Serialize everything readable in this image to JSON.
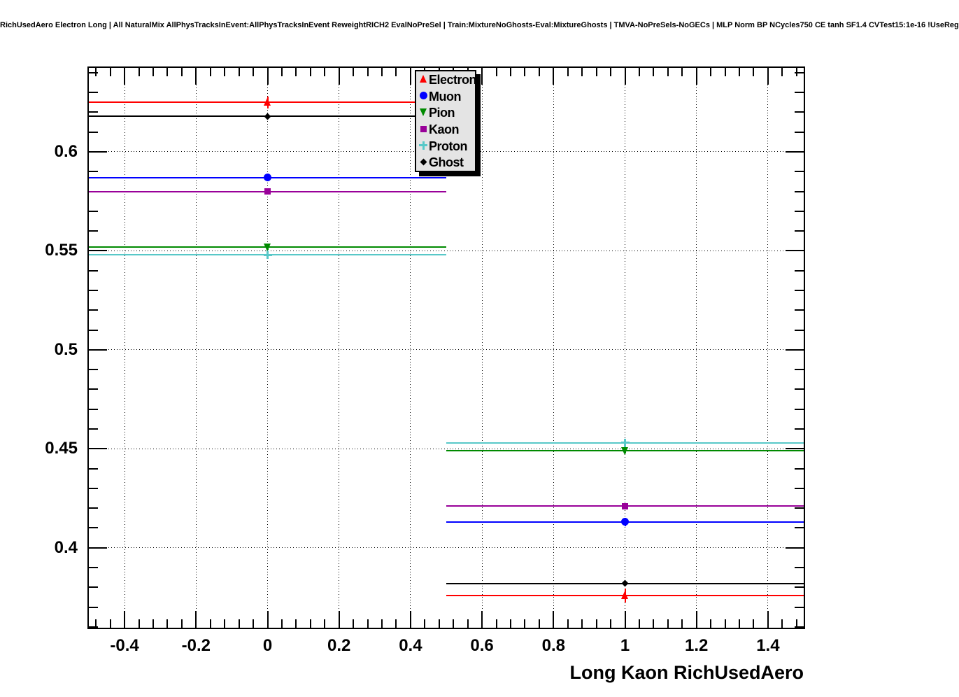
{
  "chart_data": {
    "type": "line",
    "title": "RichUsedAero Electron Long | All NaturalMix AllPhysTracksInEvent:AllPhysTracksInEvent ReweightRICH2 EvalNoPreSel | Train:MixtureNoGhosts-Eval:MixtureGhosts | TMVA-NoPreSels-NoGECs | MLP Norm BP NCycles750 CE tanh SF1.4 CVTest15:1e-16 !UseReg",
    "xlabel": "Long Kaon RichUsedAero",
    "ylabel": "",
    "xlim": [
      -0.5,
      1.5
    ],
    "ylim": [
      0.3596,
      0.6424
    ],
    "grid": "dotted",
    "x_axis": {
      "major_ticks": [
        -0.4,
        -0.2,
        0,
        0.2,
        0.4,
        0.6,
        0.8,
        1,
        1.2,
        1.4
      ],
      "tick_labels": [
        "-0.4",
        "-0.2",
        "0",
        "0.2",
        "0.4",
        "0.6",
        "0.8",
        "1",
        "1.2",
        "1.4"
      ],
      "minor_step": 0.04
    },
    "y_axis": {
      "major_ticks": [
        0.6,
        0.55,
        0.5,
        0.45,
        0.4
      ],
      "tick_labels": [
        "0.6",
        "0.55",
        "0.5",
        "0.45",
        "0.4"
      ],
      "minor_step": 0.01
    },
    "x": [
      0,
      1
    ],
    "bin_half_width": 0.5,
    "series": [
      {
        "name": "Electron",
        "color": "#ff0000",
        "marker": "triangle-up",
        "values": [
          0.625,
          0.376
        ],
        "errors": [
          0.003,
          0.0035
        ]
      },
      {
        "name": "Muon",
        "color": "#0000ff",
        "marker": "circle",
        "values": [
          0.587,
          0.413
        ],
        "errors": [
          0.002,
          0.002
        ]
      },
      {
        "name": "Pion",
        "color": "#008a00",
        "marker": "triangle-down",
        "values": [
          0.552,
          0.449
        ],
        "errors": [
          0.0015,
          0.0015
        ]
      },
      {
        "name": "Kaon",
        "color": "#990099",
        "marker": "square",
        "values": [
          0.58,
          0.421
        ],
        "errors": [
          0.0015,
          0.0015
        ]
      },
      {
        "name": "Proton",
        "color": "#58c8c8",
        "marker": "cross",
        "values": [
          0.548,
          0.453
        ],
        "errors": [
          0.0015,
          0.0015
        ]
      },
      {
        "name": "Ghost",
        "color": "#000000",
        "marker": "diamond",
        "values": [
          0.618,
          0.382
        ],
        "errors": [
          0.001,
          0.001
        ]
      }
    ],
    "legend": {
      "position": "top-right",
      "fill": "#e4e4e4",
      "border_color": "#000000",
      "entries": [
        "Electron",
        "Muon",
        "Pion",
        "Kaon",
        "Proton",
        "Ghost"
      ]
    }
  }
}
